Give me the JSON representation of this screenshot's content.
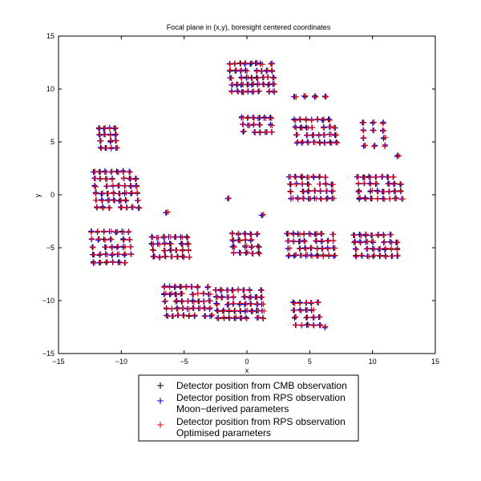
{
  "chart_data": {
    "type": "scatter",
    "title": "Focal plane in (x,y), boresight centered coordinates",
    "xlabel": "x",
    "ylabel": "y",
    "xlim": [
      -15,
      15
    ],
    "ylim": [
      -15,
      15
    ],
    "xticks": [
      -15,
      -10,
      -5,
      0,
      5,
      10,
      15
    ],
    "yticks": [
      -15,
      -10,
      -5,
      0,
      5,
      10,
      15
    ],
    "xtick_labels": [
      "−15",
      "−10",
      "−5",
      "0",
      "5",
      "10",
      "15"
    ],
    "ytick_labels": [
      "−15",
      "−10",
      "−5",
      "0",
      "5",
      "10",
      "15"
    ],
    "grid": false,
    "legend_position": "bottom-center",
    "marker": "+",
    "series": [
      {
        "name": "Detector position from CMB observation",
        "name_lines": [
          "Detector position from CMB observation"
        ],
        "color": "#000000"
      },
      {
        "name": "Detector position from RPS observation Moon−derived parameters",
        "name_lines": [
          "Detector position from RPS observation",
          "Moon−derived parameters"
        ],
        "color": "#0000ff"
      },
      {
        "name": "Detector position from RPS observation Optimised parameters",
        "name_lines": [
          " Detector position from RPS observation",
          "Optimised parameters"
        ],
        "color": "#ff0000"
      }
    ],
    "clusters": [
      {
        "x0": -11.8,
        "y0": 6.3,
        "nx": 4,
        "ny": 4,
        "dx": 0.42,
        "dy": -0.62
      },
      {
        "x0": -12.2,
        "y0": 2.2,
        "nx": 8,
        "ny": 6,
        "dx": 0.47,
        "dy": -0.68
      },
      {
        "x0": -12.4,
        "y0": -3.5,
        "nx": 7,
        "ny": 5,
        "dx": 0.5,
        "dy": -0.72
      },
      {
        "x0": -7.6,
        "y0": -4.0,
        "nx": 7,
        "ny": 4,
        "dx": 0.47,
        "dy": -0.62
      },
      {
        "x0": -6.6,
        "y0": -8.7,
        "nx": 9,
        "ny": 5,
        "dx": 0.44,
        "dy": -0.68
      },
      {
        "x0": -2.5,
        "y0": -9.0,
        "nx": 9,
        "ny": 5,
        "dx": 0.45,
        "dy": -0.66
      },
      {
        "x0": -1.2,
        "y0": -3.7,
        "nx": 5,
        "ny": 4,
        "dx": 0.5,
        "dy": -0.6
      },
      {
        "x0": 3.7,
        "y0": -10.2,
        "nx": 5,
        "ny": 4,
        "dx": 0.48,
        "dy": -0.7
      },
      {
        "x0": 3.2,
        "y0": -3.7,
        "nx": 9,
        "ny": 4,
        "dx": 0.45,
        "dy": -0.68
      },
      {
        "x0": 8.5,
        "y0": -3.8,
        "nx": 8,
        "ny": 4,
        "dx": 0.48,
        "dy": -0.66
      },
      {
        "x0": 3.4,
        "y0": 1.7,
        "nx": 8,
        "ny": 4,
        "dx": 0.47,
        "dy": -0.68
      },
      {
        "x0": 8.8,
        "y0": 1.7,
        "nx": 8,
        "ny": 4,
        "dx": 0.48,
        "dy": -0.68
      },
      {
        "x0": 3.8,
        "y0": 7.1,
        "nx": 8,
        "ny": 4,
        "dx": 0.45,
        "dy": -0.72
      },
      {
        "x0": -1.4,
        "y0": 12.4,
        "nx": 9,
        "ny": 5,
        "dx": 0.42,
        "dy": -0.66
      },
      {
        "x0": -0.4,
        "y0": 7.3,
        "nx": 6,
        "ny": 3,
        "dx": 0.45,
        "dy": -0.68
      },
      {
        "x0": 9.2,
        "y0": 6.8,
        "nx": 3,
        "ny": 4,
        "dx": 0.8,
        "dy": -0.72
      },
      {
        "x0": 3.8,
        "y0": 9.3,
        "nx": 4,
        "ny": 1,
        "dx": 0.8,
        "dy": -0.6
      }
    ],
    "isolated_points": [
      [
        -6.4,
        -1.7
      ],
      [
        1.2,
        -1.9
      ],
      [
        6.2,
        -12.5
      ],
      [
        12.0,
        3.7
      ],
      [
        -1.5,
        -0.3
      ]
    ]
  }
}
